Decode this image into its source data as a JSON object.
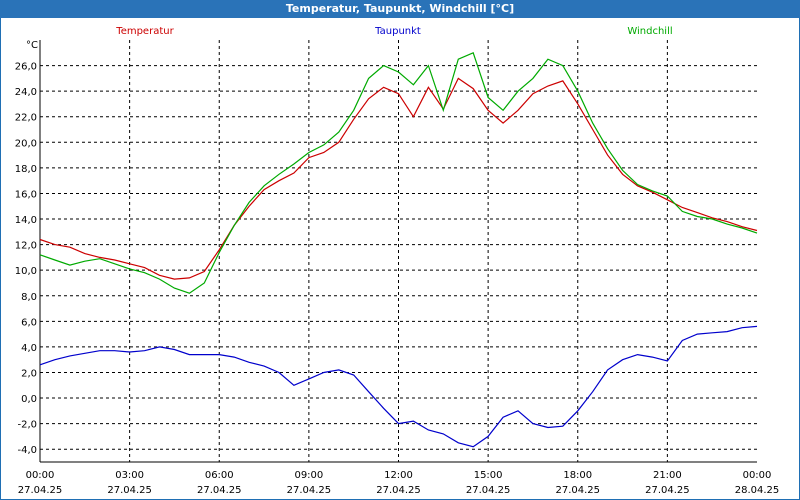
{
  "window": {
    "title": "Temperatur, Taupunkt, Windchill [°C]"
  },
  "colors": {
    "titlebar": "#2a73b8",
    "temperatur": "#cc0000",
    "taupunkt": "#0000cc",
    "windchill": "#00aa00",
    "grid": "#000000"
  },
  "chart_data": {
    "type": "line",
    "title": "Temperatur, Taupunkt, Windchill [°C]",
    "ylabel": "°C",
    "ylim": [
      -5.0,
      28.0
    ],
    "xlim": [
      0,
      24
    ],
    "y_ticks": [
      "26,0",
      "24,0",
      "22,0",
      "20,0",
      "18,0",
      "16,0",
      "14,0",
      "12,0",
      "10,0",
      "8,0",
      "6,0",
      "4,0",
      "2,0",
      "0,0",
      "-2,0",
      "-4,0"
    ],
    "y_tick_values": [
      26,
      24,
      22,
      20,
      18,
      16,
      14,
      12,
      10,
      8,
      6,
      4,
      2,
      0,
      -2,
      -4
    ],
    "x_ticks": [
      {
        "time": "00:00",
        "date": "27.04.25",
        "h": 0
      },
      {
        "time": "03:00",
        "date": "27.04.25",
        "h": 3
      },
      {
        "time": "06:00",
        "date": "27.04.25",
        "h": 6
      },
      {
        "time": "09:00",
        "date": "27.04.25",
        "h": 9
      },
      {
        "time": "12:00",
        "date": "27.04.25",
        "h": 12
      },
      {
        "time": "15:00",
        "date": "27.04.25",
        "h": 15
      },
      {
        "time": "18:00",
        "date": "27.04.25",
        "h": 18
      },
      {
        "time": "21:00",
        "date": "27.04.25",
        "h": 21
      },
      {
        "time": "00:00",
        "date": "28.04.25",
        "h": 24
      }
    ],
    "grid": true,
    "legend": [
      "Temperatur",
      "Taupunkt",
      "Windchill"
    ],
    "series": [
      {
        "name": "Temperatur",
        "color": "#cc0000",
        "x": [
          0,
          0.5,
          1,
          1.5,
          2,
          2.5,
          3,
          3.5,
          4,
          4.5,
          5,
          5.5,
          6,
          6.5,
          7,
          7.5,
          8,
          8.5,
          9,
          9.5,
          10,
          10.5,
          11,
          11.5,
          12,
          12.5,
          13,
          13.5,
          14,
          14.5,
          15,
          15.5,
          16,
          16.5,
          17,
          17.5,
          18,
          18.5,
          19,
          19.5,
          20,
          20.5,
          21,
          21.5,
          22,
          22.5,
          23,
          23.5,
          24
        ],
        "values": [
          12.4,
          12.0,
          11.8,
          11.3,
          11.0,
          10.8,
          10.5,
          10.2,
          9.6,
          9.3,
          9.4,
          9.9,
          11.6,
          13.5,
          15.0,
          16.3,
          17.0,
          17.6,
          18.8,
          19.2,
          20.0,
          21.8,
          23.4,
          24.3,
          23.8,
          22.0,
          24.3,
          22.6,
          25.0,
          24.2,
          22.5,
          21.5,
          22.5,
          23.8,
          24.4,
          24.8,
          23.0,
          21.0,
          19.0,
          17.5,
          16.6,
          16.1,
          15.5,
          14.9,
          14.5,
          14.1,
          13.8,
          13.4,
          13.1
        ]
      },
      {
        "name": "Taupunkt",
        "color": "#0000cc",
        "x": [
          0,
          0.5,
          1,
          1.5,
          2,
          2.5,
          3,
          3.5,
          4,
          4.5,
          5,
          5.5,
          6,
          6.5,
          7,
          7.5,
          8,
          8.5,
          9,
          9.5,
          10,
          10.5,
          11,
          11.5,
          12,
          12.5,
          13,
          13.5,
          14,
          14.5,
          15,
          15.5,
          16,
          16.5,
          17,
          17.5,
          18,
          18.5,
          19,
          19.5,
          20,
          20.5,
          21,
          21.5,
          22,
          22.5,
          23,
          23.5,
          24
        ],
        "values": [
          2.6,
          3.0,
          3.3,
          3.5,
          3.7,
          3.7,
          3.6,
          3.7,
          4.0,
          3.8,
          3.4,
          3.4,
          3.4,
          3.2,
          2.8,
          2.5,
          2.0,
          1.0,
          1.5,
          2.0,
          2.2,
          1.8,
          0.5,
          -0.8,
          -2.0,
          -1.8,
          -2.5,
          -2.8,
          -3.5,
          -3.8,
          -3.0,
          -1.5,
          -1.0,
          -2.0,
          -2.3,
          -2.2,
          -1.0,
          0.5,
          2.2,
          3.0,
          3.4,
          3.2,
          2.9,
          4.5,
          5.0,
          5.1,
          5.2,
          5.5,
          5.6
        ]
      },
      {
        "name": "Windchill",
        "color": "#00aa00",
        "x": [
          0,
          0.5,
          1,
          1.5,
          2,
          2.5,
          3,
          3.5,
          4,
          4.5,
          5,
          5.5,
          6,
          6.5,
          7,
          7.5,
          8,
          8.5,
          9,
          9.5,
          10,
          10.5,
          11,
          11.5,
          12,
          12.5,
          13,
          13.5,
          14,
          14.5,
          15,
          15.5,
          16,
          16.5,
          17,
          17.5,
          18,
          18.5,
          19,
          19.5,
          20,
          20.5,
          21,
          21.5,
          22,
          22.5,
          23,
          23.5,
          24
        ],
        "values": [
          11.2,
          10.8,
          10.4,
          10.7,
          10.9,
          10.5,
          10.1,
          9.8,
          9.3,
          8.6,
          8.2,
          9.0,
          11.4,
          13.5,
          15.3,
          16.6,
          17.5,
          18.3,
          19.2,
          19.8,
          20.8,
          22.5,
          25.0,
          26.0,
          25.5,
          24.5,
          26.0,
          22.5,
          26.5,
          27.0,
          23.5,
          22.5,
          24.0,
          25.0,
          26.5,
          26.0,
          24.0,
          21.5,
          19.5,
          17.8,
          16.7,
          16.2,
          15.8,
          14.6,
          14.2,
          14.0,
          13.6,
          13.3,
          12.9
        ]
      }
    ]
  }
}
